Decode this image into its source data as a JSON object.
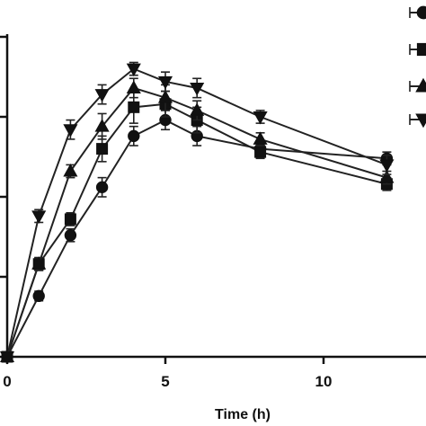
{
  "chart_data": {
    "type": "line",
    "xlabel": "Time (h)",
    "ylabel": "",
    "xlim": [
      0,
      13
    ],
    "ylim": [
      0,
      110
    ],
    "x_ticks": [
      0,
      5,
      10
    ],
    "y_ticks": [
      0,
      25,
      50,
      75,
      100
    ],
    "legend": {
      "placement": "top-right"
    },
    "series": [
      {
        "marker": "circle",
        "x": [
          0,
          1,
          2,
          3,
          4,
          5,
          6,
          8,
          12
        ],
        "y": [
          0,
          19,
          38,
          53,
          69,
          74,
          69,
          65,
          62
        ],
        "err": [
          0,
          1.5,
          2,
          3,
          3,
          3,
          3,
          2,
          2
        ]
      },
      {
        "marker": "square",
        "x": [
          0,
          1,
          2,
          3,
          4,
          5,
          6,
          8,
          12
        ],
        "y": [
          0,
          29,
          43,
          65,
          78,
          79,
          74,
          64,
          54
        ],
        "err": [
          0,
          2,
          2,
          4,
          5,
          4,
          4,
          2,
          2
        ]
      },
      {
        "marker": "triangle-up",
        "x": [
          0,
          1,
          2,
          3,
          4,
          5,
          6,
          8,
          12
        ],
        "y": [
          0,
          29,
          58,
          72,
          84,
          81,
          77,
          68,
          56
        ],
        "err": [
          0,
          2,
          2,
          4,
          3,
          4,
          3,
          2,
          2
        ]
      },
      {
        "marker": "triangle-down",
        "x": [
          0,
          1,
          2,
          3,
          4,
          5,
          6,
          8,
          12
        ],
        "y": [
          0,
          44,
          71,
          82,
          90,
          86,
          84,
          75,
          60
        ],
        "err": [
          0,
          2,
          3,
          3,
          2,
          3,
          3,
          2,
          3
        ]
      }
    ]
  }
}
